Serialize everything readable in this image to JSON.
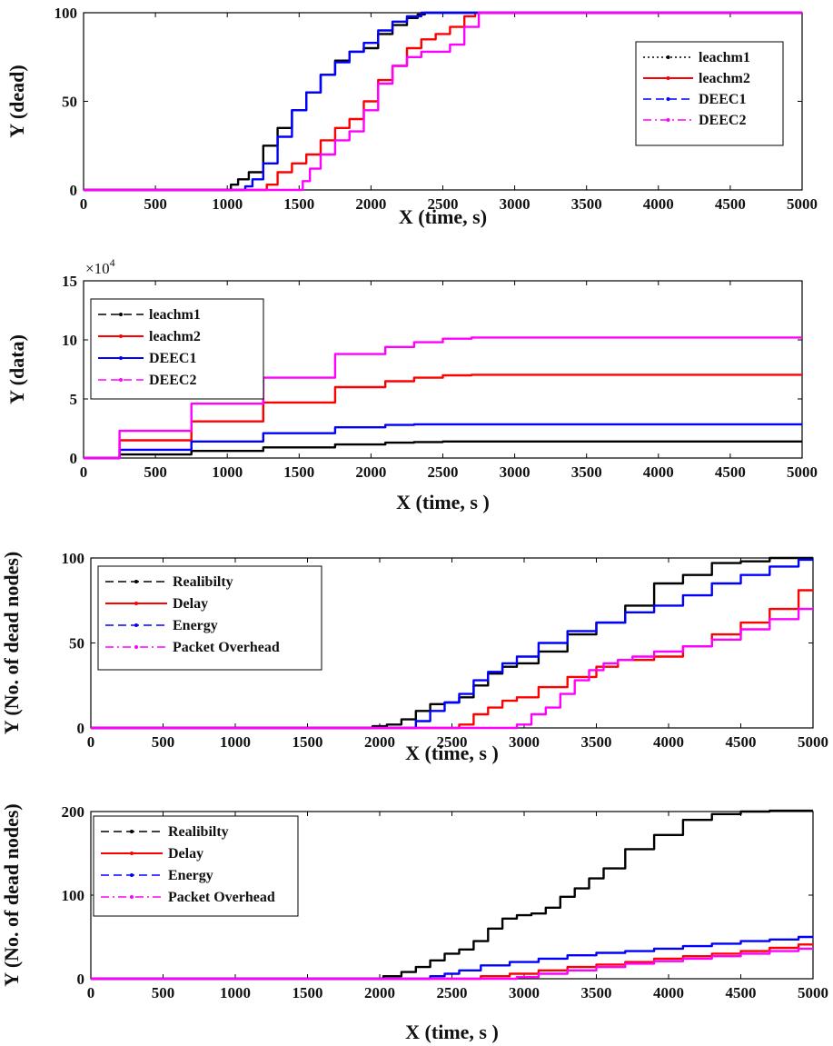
{
  "chart_data": [
    {
      "type": "line",
      "xlabel": "X (time, s)",
      "ylabel": "Y (dead)",
      "xlim": [
        0,
        5000
      ],
      "ylim": [
        0,
        100
      ],
      "xticks": [
        "0",
        "500",
        "1000",
        "1500",
        "2000",
        "2500",
        "3000",
        "3500",
        "4000",
        "4500",
        "5000"
      ],
      "yticks": [
        "0",
        "50",
        "100"
      ],
      "legend": "top-right",
      "series": [
        {
          "name": "leachm1",
          "color": "#000000",
          "dash": "dotted",
          "x": [
            0,
            1000,
            1050,
            1100,
            1200,
            1300,
            1400,
            1500,
            1600,
            1700,
            1800,
            1900,
            2000,
            2100,
            2200,
            2300,
            2350,
            2400,
            5000
          ],
          "y": [
            0,
            0,
            3,
            6,
            10,
            25,
            35,
            45,
            55,
            65,
            73,
            78,
            80,
            88,
            93,
            97,
            99,
            100,
            100
          ]
        },
        {
          "name": "leachm2",
          "color": "#ff0000",
          "dash": "solid",
          "x": [
            0,
            1250,
            1300,
            1400,
            1500,
            1600,
            1700,
            1800,
            1900,
            2000,
            2100,
            2200,
            2300,
            2400,
            2500,
            2600,
            2700,
            2750,
            5000
          ],
          "y": [
            0,
            0,
            3,
            10,
            15,
            20,
            28,
            35,
            40,
            50,
            62,
            70,
            80,
            85,
            88,
            92,
            98,
            100,
            100
          ]
        },
        {
          "name": "DEEC1",
          "color": "#0000ff",
          "dash": "dashed",
          "x": [
            0,
            1100,
            1150,
            1200,
            1300,
            1400,
            1500,
            1600,
            1700,
            1800,
            1900,
            2000,
            2100,
            2200,
            2300,
            2400,
            2450,
            5000
          ],
          "y": [
            0,
            0,
            2,
            6,
            15,
            30,
            45,
            55,
            65,
            72,
            78,
            83,
            90,
            95,
            98,
            100,
            100,
            100
          ]
        },
        {
          "name": "DEEC2",
          "color": "#ff00ff",
          "dash": "dashdot",
          "x": [
            0,
            1500,
            1550,
            1600,
            1700,
            1800,
            1900,
            2000,
            2100,
            2200,
            2300,
            2400,
            2500,
            2600,
            2700,
            2800,
            2850,
            5000
          ],
          "y": [
            0,
            0,
            5,
            12,
            20,
            28,
            33,
            45,
            60,
            70,
            75,
            78,
            78,
            82,
            92,
            100,
            100,
            100
          ]
        }
      ]
    },
    {
      "type": "line",
      "xlabel": "X (time, s )",
      "ylabel": "Y (data)",
      "multiplier": "×10",
      "multiplier_exp": "4",
      "xlim": [
        0,
        5000
      ],
      "ylim": [
        0,
        15
      ],
      "xticks": [
        "0",
        "500",
        "1000",
        "1500",
        "2000",
        "2500",
        "3000",
        "3500",
        "4000",
        "4500",
        "5000"
      ],
      "yticks": [
        "0",
        "5",
        "10",
        "15"
      ],
      "legend": "top-left",
      "series": [
        {
          "name": "leachm1",
          "color": "#000000",
          "dash": "dashed",
          "x": [
            0,
            500,
            1000,
            1500,
            2000,
            2200,
            2400,
            2600,
            5000
          ],
          "y": [
            0,
            0.3,
            0.6,
            0.9,
            1.15,
            1.3,
            1.35,
            1.4,
            1.4
          ]
        },
        {
          "name": "leachm2",
          "color": "#ff0000",
          "dash": "solid",
          "x": [
            0,
            500,
            1000,
            1500,
            2000,
            2200,
            2400,
            2600,
            2800,
            5000
          ],
          "y": [
            0,
            1.5,
            3.1,
            4.7,
            6.0,
            6.5,
            6.8,
            7.0,
            7.05,
            7.05
          ]
        },
        {
          "name": "DEEC1",
          "color": "#0000ff",
          "dash": "solid",
          "x": [
            0,
            500,
            1000,
            1500,
            2000,
            2200,
            2400,
            2600,
            5000
          ],
          "y": [
            0,
            0.7,
            1.4,
            2.1,
            2.6,
            2.8,
            2.85,
            2.85,
            2.85
          ]
        },
        {
          "name": "DEEC2",
          "color": "#ff00ff",
          "dash": "dashed",
          "x": [
            0,
            500,
            1000,
            1500,
            2000,
            2200,
            2400,
            2600,
            2800,
            5000
          ],
          "y": [
            0,
            2.3,
            4.6,
            6.8,
            8.8,
            9.4,
            9.8,
            10.1,
            10.2,
            10.2
          ]
        }
      ]
    },
    {
      "type": "line",
      "xlabel": "X (time, s )",
      "ylabel": "Y (No. of dead nodes)",
      "xlim": [
        0,
        5000
      ],
      "ylim": [
        0,
        100
      ],
      "xticks": [
        "0",
        "500",
        "1000",
        "1500",
        "2000",
        "2500",
        "3000",
        "3500",
        "4000",
        "4500",
        "5000"
      ],
      "yticks": [
        "0",
        "50",
        "100"
      ],
      "legend": "top-left",
      "series": [
        {
          "name": "Realibilty",
          "color": "#000000",
          "dash": "dashed",
          "x": [
            0,
            1900,
            2000,
            2100,
            2200,
            2300,
            2400,
            2500,
            2600,
            2700,
            2800,
            2900,
            3000,
            3200,
            3400,
            3600,
            3800,
            4000,
            4200,
            4400,
            4600,
            4800,
            5000
          ],
          "y": [
            0,
            0,
            1,
            2,
            5,
            10,
            14,
            15,
            18,
            25,
            32,
            36,
            38,
            45,
            55,
            62,
            72,
            85,
            90,
            97,
            98,
            100,
            100
          ]
        },
        {
          "name": "Delay",
          "color": "#ff0000",
          "dash": "solid",
          "x": [
            0,
            2500,
            2600,
            2700,
            2800,
            2900,
            3000,
            3200,
            3400,
            3600,
            3700,
            3800,
            4000,
            4200,
            4400,
            4600,
            4800,
            5000
          ],
          "y": [
            0,
            0,
            2,
            8,
            12,
            16,
            18,
            24,
            30,
            36,
            40,
            40,
            42,
            48,
            55,
            62,
            70,
            81
          ]
        },
        {
          "name": "Energy",
          "color": "#0000ff",
          "dash": "dashed",
          "x": [
            0,
            2200,
            2300,
            2400,
            2500,
            2600,
            2700,
            2800,
            2900,
            3000,
            3200,
            3400,
            3600,
            3800,
            4000,
            4200,
            4400,
            4600,
            4800,
            5000
          ],
          "y": [
            0,
            0,
            4,
            10,
            15,
            20,
            28,
            33,
            38,
            42,
            50,
            57,
            62,
            68,
            72,
            78,
            85,
            90,
            95,
            99
          ]
        },
        {
          "name": "Packet Overhead",
          "color": "#ff00ff",
          "dash": "dashdot",
          "x": [
            0,
            2900,
            3000,
            3100,
            3200,
            3300,
            3400,
            3500,
            3600,
            3700,
            3800,
            4000,
            4200,
            4400,
            4600,
            4800,
            5000
          ],
          "y": [
            0,
            0,
            2,
            8,
            12,
            20,
            28,
            34,
            38,
            40,
            42,
            45,
            48,
            52,
            58,
            64,
            70
          ]
        }
      ]
    },
    {
      "type": "line",
      "xlabel": "X (time, s )",
      "ylabel": "Y (No. of dead nodes)",
      "xlim": [
        0,
        5000
      ],
      "ylim": [
        0,
        200
      ],
      "xticks": [
        "0",
        "500",
        "1000",
        "1500",
        "2000",
        "2500",
        "3000",
        "3500",
        "4000",
        "4500",
        "5000"
      ],
      "yticks": [
        "0",
        "100",
        "200"
      ],
      "legend": "top-left",
      "series": [
        {
          "name": "Realibilty",
          "color": "#000000",
          "dash": "dashed",
          "x": [
            0,
            1950,
            2100,
            2200,
            2300,
            2400,
            2500,
            2600,
            2700,
            2800,
            2900,
            3000,
            3100,
            3200,
            3300,
            3400,
            3500,
            3600,
            3800,
            4000,
            4200,
            4400,
            4600,
            4800,
            5000
          ],
          "y": [
            0,
            0,
            3,
            8,
            14,
            22,
            30,
            35,
            45,
            60,
            72,
            76,
            78,
            85,
            98,
            108,
            120,
            132,
            155,
            172,
            190,
            197,
            200,
            201,
            201
          ]
        },
        {
          "name": "Delay",
          "color": "#ff0000",
          "dash": "solid",
          "x": [
            0,
            2600,
            2800,
            3000,
            3200,
            3400,
            3600,
            3800,
            4000,
            4200,
            4400,
            4600,
            4800,
            5000
          ],
          "y": [
            0,
            0,
            3,
            6,
            10,
            14,
            17,
            20,
            24,
            27,
            30,
            33,
            37,
            41
          ]
        },
        {
          "name": "Energy",
          "color": "#0000ff",
          "dash": "dashed",
          "x": [
            0,
            2300,
            2400,
            2500,
            2600,
            2800,
            3000,
            3200,
            3400,
            3600,
            3800,
            4000,
            4200,
            4400,
            4600,
            4800,
            5000
          ],
          "y": [
            0,
            0,
            3,
            6,
            10,
            16,
            20,
            24,
            28,
            31,
            33,
            36,
            39,
            42,
            45,
            47,
            50
          ]
        },
        {
          "name": "Packet Overhead",
          "color": "#ff00ff",
          "dash": "dashdot",
          "x": [
            0,
            2900,
            3000,
            3200,
            3400,
            3600,
            3800,
            4000,
            4200,
            4400,
            4600,
            4800,
            5000
          ],
          "y": [
            0,
            0,
            2,
            6,
            10,
            14,
            18,
            21,
            24,
            27,
            30,
            33,
            36
          ]
        }
      ]
    }
  ]
}
